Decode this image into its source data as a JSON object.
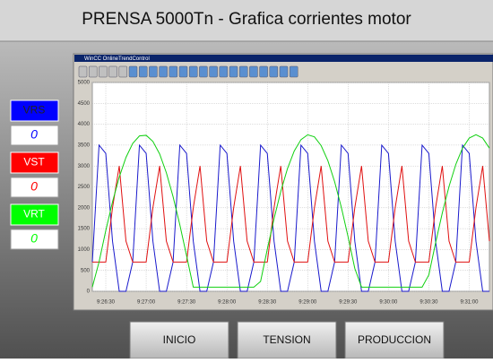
{
  "header": {
    "title": "PRENSA 5000Tn - Grafica corrientes motor"
  },
  "indicators": [
    {
      "label": "VRS",
      "value": 0,
      "color": "#0000ff"
    },
    {
      "label": "VST",
      "value": 0,
      "color": "#ff0000"
    },
    {
      "label": "VRT",
      "value": 0,
      "color": "#00ff00"
    }
  ],
  "window_title": "WinCC OnlineTrendControl",
  "buttons": [
    "INICIO",
    "TENSION",
    "PRODUCCION"
  ],
  "chart_data": {
    "type": "line",
    "x": [
      "9:26:20",
      "9:26:25",
      "9:26:30",
      "9:26:35",
      "9:26:40",
      "9:26:45",
      "9:26:50",
      "9:26:55",
      "9:27:00",
      "9:27:05",
      "9:27:10",
      "9:27:15",
      "9:27:20",
      "9:27:25",
      "9:27:30",
      "9:27:35",
      "9:27:40",
      "9:27:45",
      "9:27:50",
      "9:27:55",
      "9:28:00",
      "9:28:05",
      "9:28:10",
      "9:28:15",
      "9:28:20",
      "9:28:25",
      "9:28:30",
      "9:28:35",
      "9:28:40",
      "9:28:45",
      "9:28:50",
      "9:28:55",
      "9:29:00",
      "9:29:05",
      "9:29:10",
      "9:29:15",
      "9:29:20",
      "9:29:25",
      "9:29:30",
      "9:29:35",
      "9:29:40",
      "9:29:45",
      "9:29:50",
      "9:29:55",
      "9:30:00",
      "9:30:05",
      "9:30:10",
      "9:30:15",
      "9:30:20",
      "9:30:25",
      "9:30:30",
      "9:30:35",
      "9:30:40",
      "9:30:45",
      "9:30:50",
      "9:30:55",
      "9:31:00",
      "9:31:05",
      "9:31:10",
      "9:31:15"
    ],
    "series": [
      {
        "color": "#1a1acc",
        "values": [
          700,
          3500,
          3300,
          1200,
          0,
          0,
          700,
          3500,
          3300,
          1200,
          0,
          0,
          700,
          3500,
          3300,
          1200,
          0,
          0,
          700,
          3500,
          3300,
          1200,
          0,
          0,
          700,
          3500,
          3300,
          1200,
          0,
          0,
          700,
          3500,
          3300,
          1200,
          0,
          0,
          700,
          3500,
          3300,
          1200,
          0,
          0,
          700,
          3500,
          3300,
          1200,
          0,
          0,
          700,
          3500,
          3300,
          1200,
          0,
          0,
          700,
          3500,
          3300,
          1200,
          0,
          0
        ]
      },
      {
        "color": "#e01010",
        "values": [
          700,
          700,
          700,
          2000,
          3000,
          1200,
          700,
          700,
          700,
          2000,
          3000,
          1200,
          700,
          700,
          700,
          2000,
          3000,
          1200,
          700,
          700,
          700,
          2000,
          3000,
          1200,
          700,
          700,
          700,
          2000,
          3000,
          1200,
          700,
          700,
          700,
          2000,
          3000,
          1200,
          700,
          700,
          700,
          2000,
          3000,
          1200,
          700,
          700,
          700,
          2000,
          3000,
          1200,
          700,
          700,
          700,
          2000,
          3000,
          1200,
          700,
          700,
          700,
          2000,
          3000,
          1200
        ]
      },
      {
        "color": "#10d010",
        "values": [
          100,
          703,
          1454,
          2140,
          2735,
          3206,
          3541,
          3720,
          3735,
          3588,
          3289,
          2838,
          2265,
          1594,
          855,
          100,
          100,
          100,
          100,
          100,
          100,
          100,
          100,
          100,
          100,
          236,
          1008,
          1738,
          2390,
          2939,
          3359,
          3631,
          3747,
          3698,
          3487,
          3126,
          2624,
          2010,
          1305,
          547,
          100,
          100,
          100,
          100,
          100,
          100,
          100,
          100,
          100,
          100,
          392,
          1159,
          1875,
          2510,
          3034,
          3427,
          3668,
          3750,
          3668,
          3427
        ]
      }
    ],
    "xlim": [
      "9:26:20",
      "9:31:15"
    ],
    "xticks": [
      "9:26:30",
      "9:27:00",
      "9:27:30",
      "9:28:00",
      "9:28:30",
      "9:29:00",
      "9:29:30",
      "9:30:00",
      "9:30:30",
      "9:31:00"
    ],
    "ylim": [
      0,
      5000
    ],
    "yticks": [
      0,
      500,
      1000,
      1500,
      2000,
      2500,
      3000,
      3500,
      4000,
      4500,
      5000
    ],
    "grid": true
  }
}
